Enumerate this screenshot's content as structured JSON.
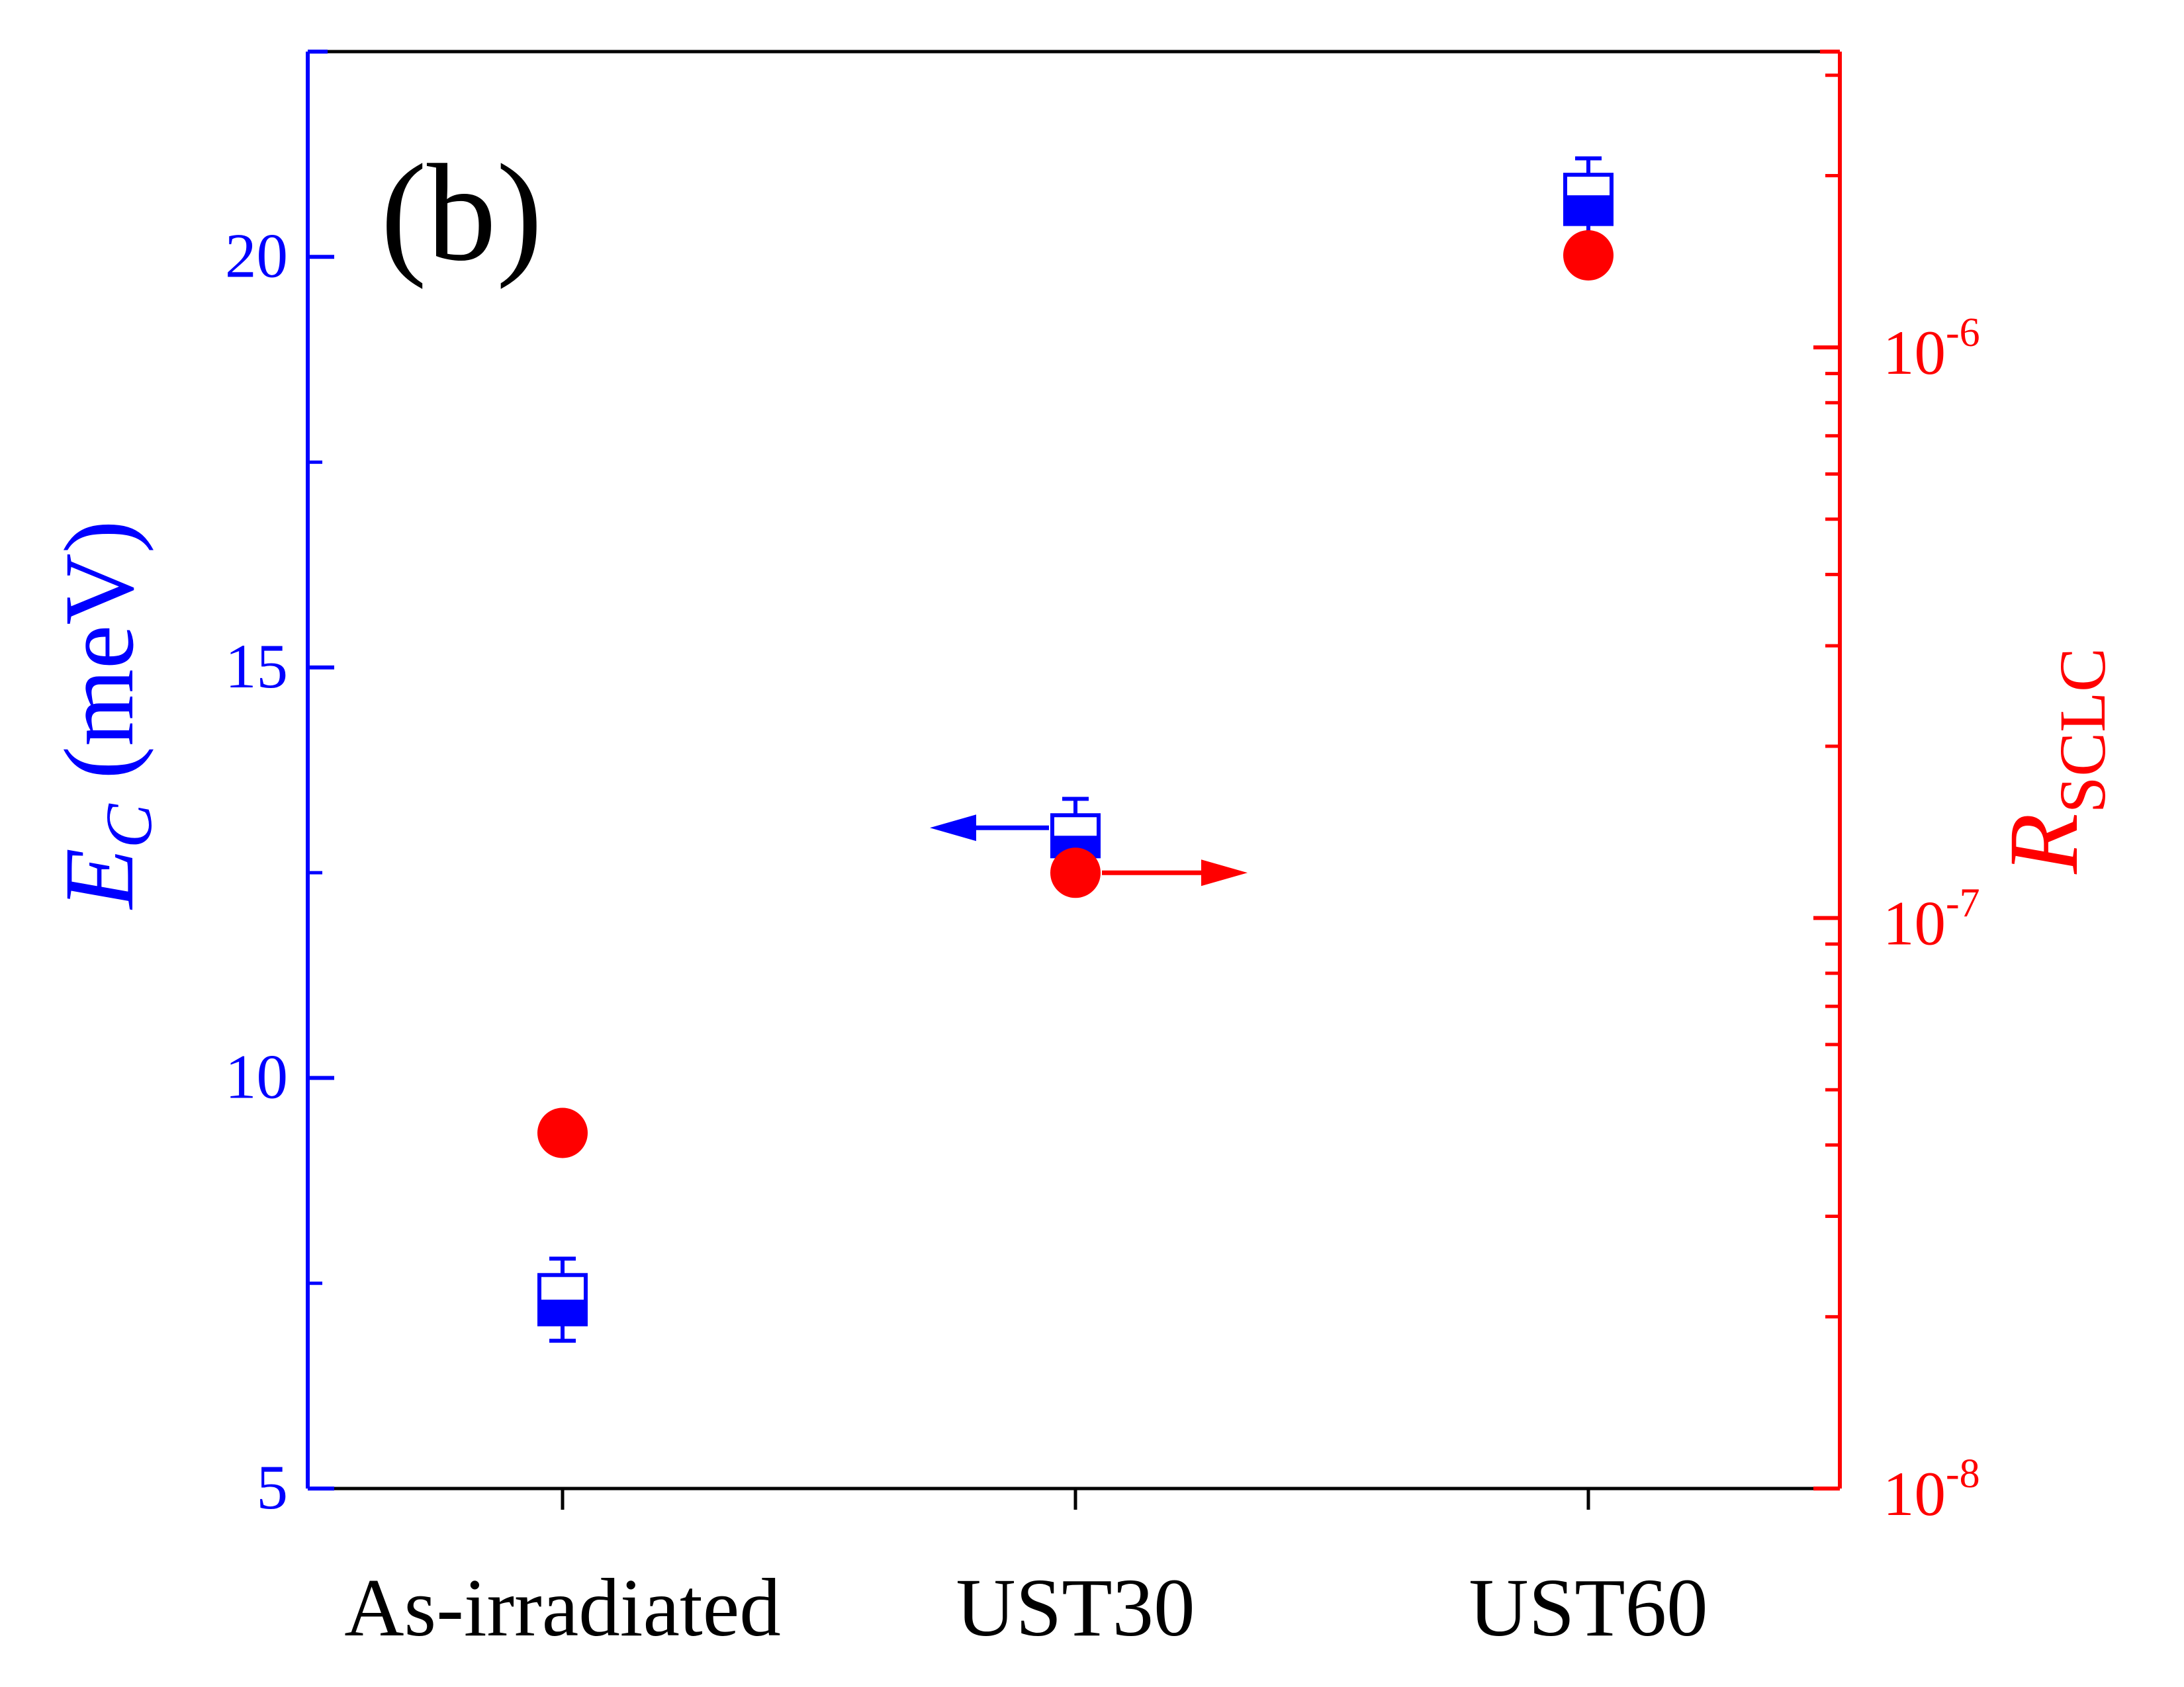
{
  "panel_label": "(b)",
  "colors": {
    "left_axis": "#0000ff",
    "right_axis": "#ff0000",
    "box": "#0000ff",
    "circle": "#ff0000",
    "frame": "#000000"
  },
  "icons": {
    "left_arrow": "arrow-left-icon",
    "right_arrow": "arrow-right-icon"
  },
  "chart_data": {
    "type": "box+scatter",
    "categories": [
      "As-irradiated",
      "UST30",
      "UST60"
    ],
    "left_axis": {
      "label_main": "E",
      "label_sub": "C",
      "label_unit": " (meV)",
      "ylim": [
        5,
        22.5
      ],
      "ticks": [
        5,
        10,
        15,
        20
      ],
      "tick_labels": [
        "5",
        "10",
        "15",
        "20"
      ],
      "minor_ticks": [
        7.5,
        12.5,
        17.5
      ]
    },
    "right_axis": {
      "label_main": "R",
      "label_sub": "SCLC",
      "scale": "log",
      "ylim": [
        1e-08,
        3.3e-06
      ],
      "ticks": [
        1e-08,
        1e-07,
        1e-06
      ],
      "tick_labels": [
        {
          "base": "10",
          "exp": "-8"
        },
        {
          "base": "10",
          "exp": "-7"
        },
        {
          "base": "10",
          "exp": "-6"
        }
      ]
    },
    "series": [
      {
        "axis": "left",
        "kind": "box",
        "boxes": [
          {
            "category": "As-irradiated",
            "min": 6.8,
            "q1": 7.0,
            "median": 7.3,
            "q3": 7.6,
            "max": 7.8
          },
          {
            "category": "UST30",
            "min": 12.5,
            "q1": 12.7,
            "median": 12.95,
            "q3": 13.2,
            "max": 13.4
          },
          {
            "category": "UST60",
            "min": 20.2,
            "q1": 20.4,
            "median": 20.75,
            "q3": 21.0,
            "max": 21.2
          }
        ]
      },
      {
        "axis": "right",
        "kind": "scatter",
        "points": [
          {
            "category": "As-irradiated",
            "value": 4.2e-08
          },
          {
            "category": "UST30",
            "value": 1.2e-07
          },
          {
            "category": "UST60",
            "value": 1.45e-06
          }
        ]
      }
    ]
  }
}
